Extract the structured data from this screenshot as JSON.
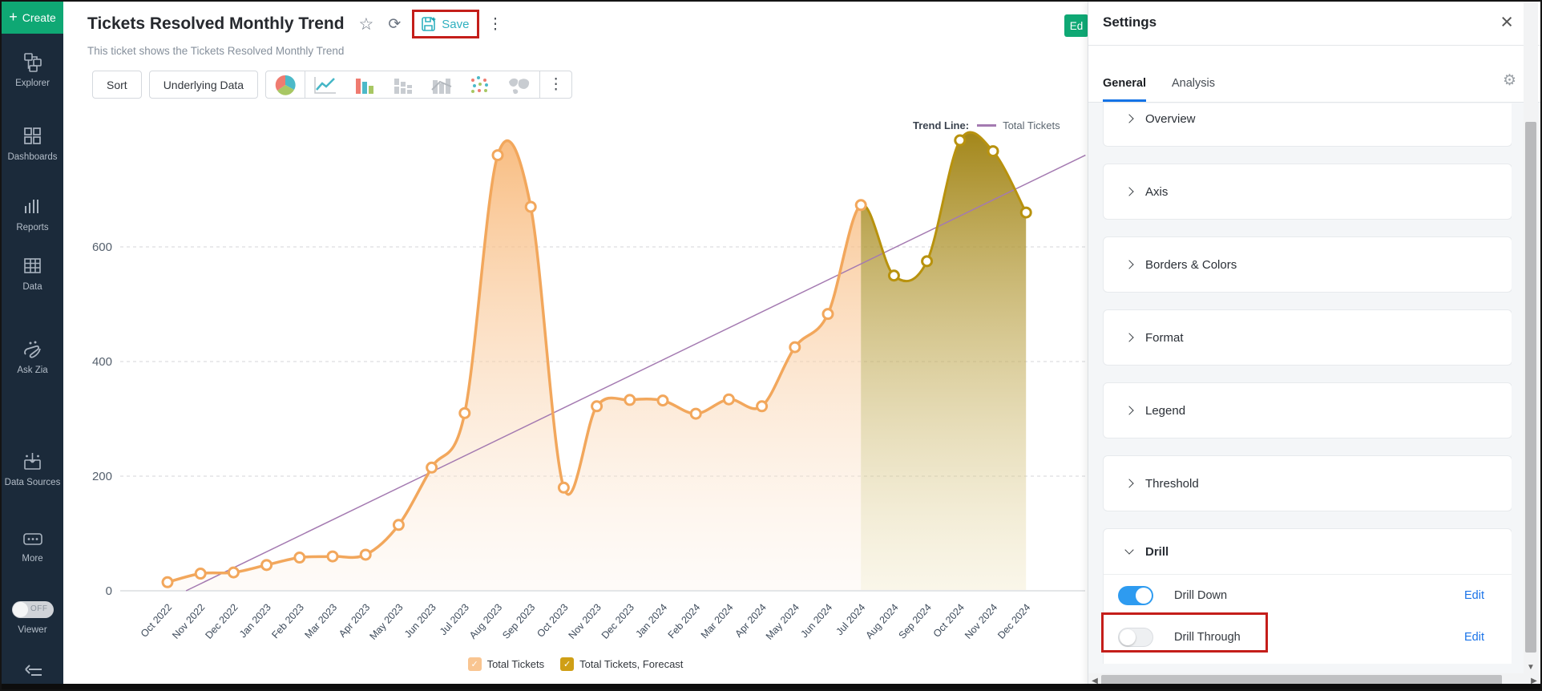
{
  "sidebar": {
    "create_label": "Create",
    "items": [
      {
        "label": "Explorer",
        "icon": "hierarchy-icon"
      },
      {
        "label": "Dashboards",
        "icon": "dashboards-grid-icon"
      },
      {
        "label": "Reports",
        "icon": "bar-report-icon"
      },
      {
        "label": "Data",
        "icon": "data-table-icon"
      },
      {
        "label": "Ask Zia",
        "icon": "zia-icon"
      },
      {
        "label": "Data Sources",
        "icon": "data-sources-icon"
      },
      {
        "label": "More",
        "icon": "more-ellipsis-icon"
      }
    ],
    "viewer": {
      "label": "Viewer",
      "toggle_state": "OFF"
    }
  },
  "header": {
    "title": "Tickets Resolved Monthly Trend",
    "subtitle": "This ticket shows the Tickets Resolved Monthly Trend",
    "save_label": "Save",
    "edit_peek_label": "Ed"
  },
  "toolbar": {
    "sort_label": "Sort",
    "underlying_label": "Underlying Data",
    "chart_icons": [
      "pie-chart-icon",
      "line-chart-icon",
      "bar-chart-icon",
      "stacked-bar-icon",
      "bar-line-icon",
      "scatter-plot-icon",
      "map-chart-icon"
    ]
  },
  "trend_legend": {
    "prefix": "Trend Line:",
    "series": "Total Tickets"
  },
  "legend": [
    {
      "label": "Total Tickets",
      "color": "#f9c591"
    },
    {
      "label": "Total Tickets, Forecast",
      "color": "#cf9f16"
    }
  ],
  "settings": {
    "title": "Settings",
    "tabs": [
      "General",
      "Analysis"
    ],
    "active_tab": "General",
    "sections": [
      "Overview",
      "Axis",
      "Borders & Colors",
      "Format",
      "Legend",
      "Threshold"
    ],
    "drill": {
      "label": "Drill",
      "rows": [
        {
          "label": "Drill Down",
          "state": "on",
          "action": "Edit"
        },
        {
          "label": "Drill Through",
          "state": "off",
          "action": "Edit"
        }
      ]
    }
  },
  "chart_data": {
    "type": "area",
    "title": "Tickets Resolved Monthly Trend",
    "x": [
      "Oct 2022",
      "Nov 2022",
      "Dec 2022",
      "Jan 2023",
      "Feb 2023",
      "Mar 2023",
      "Apr 2023",
      "May 2023",
      "Jun 2023",
      "Jul 2023",
      "Aug 2023",
      "Sep 2023",
      "Oct 2023",
      "Nov 2023",
      "Dec 2023",
      "Jan 2024",
      "Feb 2024",
      "Mar 2024",
      "Apr 2024",
      "May 2024",
      "Jun 2024",
      "Jul 2024",
      "Aug 2024",
      "Sep 2024",
      "Oct 2024",
      "Nov 2024",
      "Dec 2024"
    ],
    "series": [
      {
        "name": "Total Tickets",
        "values": [
          15,
          30,
          32,
          45,
          58,
          60,
          63,
          115,
          215,
          310,
          760,
          670,
          180,
          322,
          333,
          332,
          309,
          334,
          322,
          425,
          483,
          673,
          550,
          575,
          786,
          767,
          660
        ]
      }
    ],
    "forecast_start_index": 21,
    "forecast_series_name": "Total Tickets, Forecast",
    "trend_line": {
      "label": "Total Tickets",
      "start_index": 0.56,
      "start_value": 0,
      "end_index": 27.8,
      "end_value": 760
    },
    "yticks": [
      0,
      200,
      400,
      600
    ],
    "ylim": [
      0,
      830
    ],
    "grid": "dashed-horizontal",
    "legend_position": "bottom",
    "colors": {
      "actual_line": "#f2a75c",
      "actual_fill_top": "rgba(247,173,99,0.85)",
      "actual_fill_bottom": "rgba(252,240,229,0.25)",
      "forecast_line": "#b8920e",
      "forecast_fill_top": "rgba(155,124,6,0.95)",
      "forecast_fill_bottom": "rgba(238,226,184,0.30)",
      "trend": "#a47ab1",
      "marker_fill": "#ffffff",
      "toggle_on": "#2e9bf0",
      "tab_active_underline": "#1473e6",
      "edit_link": "#1a73e8",
      "highlight_red": "#c41e1a",
      "create_green": "#0fa874",
      "save_teal": "#2fb0bf"
    }
  }
}
